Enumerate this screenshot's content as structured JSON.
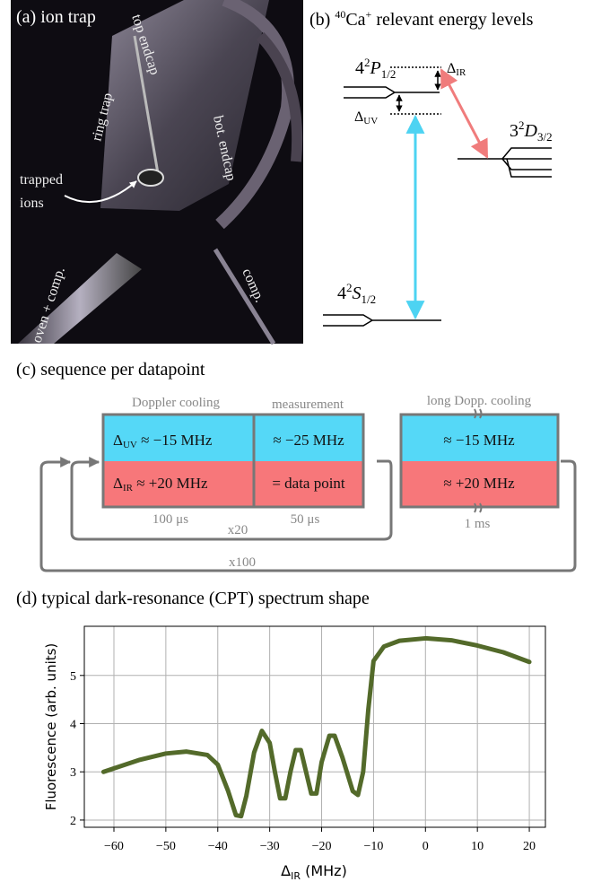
{
  "panel_a": {
    "label": "(a) ion trap",
    "annotations": {
      "top_endcap": "top endcap",
      "ring_trap": "ring trap",
      "bot_endcap": "bot. endcap",
      "trapped_ions": [
        "trapped",
        "ions"
      ],
      "oven": "oven + comp.",
      "comp": "comp."
    }
  },
  "panel_b": {
    "label": {
      "prefix": "(b) ",
      "mass": "40",
      "element": "Ca",
      "charge": "+",
      "rest": " relevant energy levels"
    },
    "levels": {
      "P": {
        "n": "4",
        "mult": "2",
        "term": "P",
        "j": "1/2"
      },
      "D": {
        "n": "3",
        "mult": "2",
        "term": "D",
        "j": "3/2"
      },
      "S": {
        "n": "4",
        "mult": "2",
        "term": "S",
        "j": "1/2"
      }
    },
    "detunings": {
      "ir": {
        "symbol": "Δ",
        "sub": "IR"
      },
      "uv": {
        "symbol": "Δ",
        "sub": "UV"
      }
    }
  },
  "panel_c": {
    "label": "(c) sequence per datapoint",
    "stages": [
      {
        "name": "Doppler cooling",
        "uv": {
          "symbol": "Δ",
          "sub": "UV",
          "text": " ≈ −15 MHz"
        },
        "ir": {
          "symbol": "Δ",
          "sub": "IR",
          "text": " ≈ +20 MHz"
        },
        "duration": "100 μs"
      },
      {
        "name": "measurement",
        "uv": {
          "text": "≈ −25 MHz"
        },
        "ir": {
          "text": "= data point"
        },
        "duration": "50 μs"
      },
      {
        "name": "long Dopp. cooling",
        "uv": {
          "text": "≈ −15 MHz"
        },
        "ir": {
          "text": "≈ +20 MHz"
        },
        "duration": "1 ms"
      }
    ],
    "loops": [
      "x20",
      "x100"
    ]
  },
  "chart_data": {
    "type": "line",
    "title": "(d) typical dark-resonance (CPT) spectrum shape",
    "y_label": "Fluorescence (arb. units)",
    "x_label": {
      "symbol": "Δ",
      "sub": "IR",
      "unit": " (MHz)"
    },
    "x": [
      -62,
      -55,
      -50,
      -46,
      -42,
      -40,
      -38,
      -36.5,
      -35.5,
      -34.5,
      -33,
      -31.5,
      -30,
      -29,
      -28,
      -27,
      -26,
      -25,
      -24,
      -23,
      -22,
      -21,
      -20,
      -18.5,
      -17.5,
      -16,
      -14,
      -13,
      -12,
      -11,
      -10,
      -8,
      -5,
      0,
      5,
      10,
      15,
      20
    ],
    "series": [
      {
        "color": "#536a2a",
        "values": [
          3.0,
          3.25,
          3.38,
          3.42,
          3.35,
          3.15,
          2.6,
          2.1,
          2.08,
          2.5,
          3.4,
          3.85,
          3.6,
          3.0,
          2.45,
          2.45,
          3.0,
          3.45,
          3.45,
          3.0,
          2.55,
          2.55,
          3.2,
          3.75,
          3.75,
          3.3,
          2.6,
          2.52,
          3.0,
          4.3,
          5.3,
          5.6,
          5.72,
          5.77,
          5.73,
          5.62,
          5.48,
          5.28
        ]
      }
    ],
    "xlim": [
      -65.7,
      23.1
    ],
    "ylim": [
      1.85,
      6.02
    ],
    "xticks": [
      {
        "value": -60,
        "label": "−60"
      },
      {
        "value": -50,
        "label": "−50"
      },
      {
        "value": -40,
        "label": "−40"
      },
      {
        "value": -30,
        "label": "−30"
      },
      {
        "value": -20,
        "label": "−20"
      },
      {
        "value": -10,
        "label": "−10"
      },
      0,
      10,
      20
    ],
    "yticks": [
      2,
      3,
      4,
      5
    ],
    "grid": true
  }
}
